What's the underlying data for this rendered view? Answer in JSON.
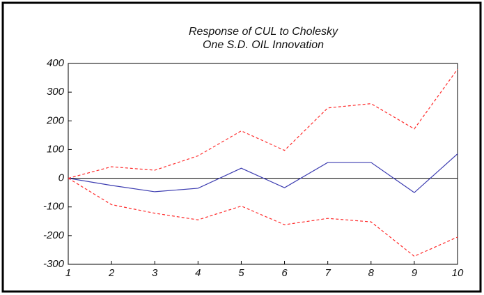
{
  "chart_data": {
    "type": "line",
    "title": "Response of CUL to Cholesky",
    "subtitle": "One S.D. OIL Innovation",
    "x": [
      1,
      2,
      3,
      4,
      5,
      6,
      7,
      8,
      9,
      10
    ],
    "series": [
      {
        "color": "#3b3bb0",
        "dashed": false,
        "values": [
          0,
          -25,
          -47,
          -35,
          35,
          -33,
          55,
          55,
          -50,
          85
        ]
      },
      {
        "color": "#ff2a2a",
        "dashed": true,
        "values": [
          0,
          40,
          28,
          78,
          165,
          97,
          245,
          260,
          172,
          380
        ]
      },
      {
        "color": "#ff2a2a",
        "dashed": true,
        "values": [
          0,
          -92,
          -122,
          -145,
          -97,
          -162,
          -140,
          -152,
          -272,
          -205
        ]
      }
    ],
    "xlim": [
      1,
      10
    ],
    "xticks": [
      1,
      2,
      3,
      4,
      5,
      6,
      7,
      8,
      9,
      10
    ],
    "ylim": [
      -300,
      400
    ],
    "yticks": [
      -300,
      -200,
      -100,
      0,
      100,
      200,
      300,
      400
    ],
    "zero_line": true
  }
}
